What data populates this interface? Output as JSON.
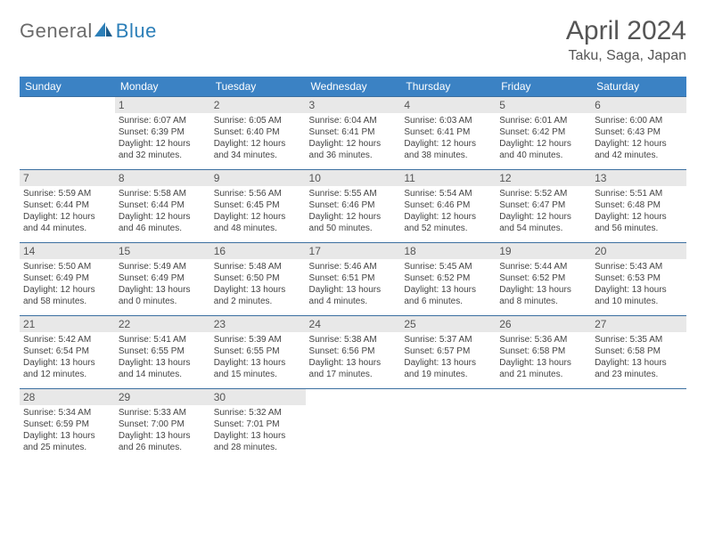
{
  "brand": {
    "general": "General",
    "blue": "Blue"
  },
  "title": "April 2024",
  "location": "Taku, Saga, Japan",
  "columns": [
    "Sunday",
    "Monday",
    "Tuesday",
    "Wednesday",
    "Thursday",
    "Friday",
    "Saturday"
  ],
  "colors": {
    "header_bg": "#3b82c4",
    "header_text": "#ffffff",
    "row_border": "#3b6fa0",
    "daynum_bg": "#e8e8e8",
    "text": "#444444",
    "brand_blue": "#2c7fb8",
    "brand_grey": "#6b6b6b"
  },
  "weeks": [
    [
      null,
      {
        "n": "1",
        "sunrise": "Sunrise: 6:07 AM",
        "sunset": "Sunset: 6:39 PM",
        "day1": "Daylight: 12 hours",
        "day2": "and 32 minutes."
      },
      {
        "n": "2",
        "sunrise": "Sunrise: 6:05 AM",
        "sunset": "Sunset: 6:40 PM",
        "day1": "Daylight: 12 hours",
        "day2": "and 34 minutes."
      },
      {
        "n": "3",
        "sunrise": "Sunrise: 6:04 AM",
        "sunset": "Sunset: 6:41 PM",
        "day1": "Daylight: 12 hours",
        "day2": "and 36 minutes."
      },
      {
        "n": "4",
        "sunrise": "Sunrise: 6:03 AM",
        "sunset": "Sunset: 6:41 PM",
        "day1": "Daylight: 12 hours",
        "day2": "and 38 minutes."
      },
      {
        "n": "5",
        "sunrise": "Sunrise: 6:01 AM",
        "sunset": "Sunset: 6:42 PM",
        "day1": "Daylight: 12 hours",
        "day2": "and 40 minutes."
      },
      {
        "n": "6",
        "sunrise": "Sunrise: 6:00 AM",
        "sunset": "Sunset: 6:43 PM",
        "day1": "Daylight: 12 hours",
        "day2": "and 42 minutes."
      }
    ],
    [
      {
        "n": "7",
        "sunrise": "Sunrise: 5:59 AM",
        "sunset": "Sunset: 6:44 PM",
        "day1": "Daylight: 12 hours",
        "day2": "and 44 minutes."
      },
      {
        "n": "8",
        "sunrise": "Sunrise: 5:58 AM",
        "sunset": "Sunset: 6:44 PM",
        "day1": "Daylight: 12 hours",
        "day2": "and 46 minutes."
      },
      {
        "n": "9",
        "sunrise": "Sunrise: 5:56 AM",
        "sunset": "Sunset: 6:45 PM",
        "day1": "Daylight: 12 hours",
        "day2": "and 48 minutes."
      },
      {
        "n": "10",
        "sunrise": "Sunrise: 5:55 AM",
        "sunset": "Sunset: 6:46 PM",
        "day1": "Daylight: 12 hours",
        "day2": "and 50 minutes."
      },
      {
        "n": "11",
        "sunrise": "Sunrise: 5:54 AM",
        "sunset": "Sunset: 6:46 PM",
        "day1": "Daylight: 12 hours",
        "day2": "and 52 minutes."
      },
      {
        "n": "12",
        "sunrise": "Sunrise: 5:52 AM",
        "sunset": "Sunset: 6:47 PM",
        "day1": "Daylight: 12 hours",
        "day2": "and 54 minutes."
      },
      {
        "n": "13",
        "sunrise": "Sunrise: 5:51 AM",
        "sunset": "Sunset: 6:48 PM",
        "day1": "Daylight: 12 hours",
        "day2": "and 56 minutes."
      }
    ],
    [
      {
        "n": "14",
        "sunrise": "Sunrise: 5:50 AM",
        "sunset": "Sunset: 6:49 PM",
        "day1": "Daylight: 12 hours",
        "day2": "and 58 minutes."
      },
      {
        "n": "15",
        "sunrise": "Sunrise: 5:49 AM",
        "sunset": "Sunset: 6:49 PM",
        "day1": "Daylight: 13 hours",
        "day2": "and 0 minutes."
      },
      {
        "n": "16",
        "sunrise": "Sunrise: 5:48 AM",
        "sunset": "Sunset: 6:50 PM",
        "day1": "Daylight: 13 hours",
        "day2": "and 2 minutes."
      },
      {
        "n": "17",
        "sunrise": "Sunrise: 5:46 AM",
        "sunset": "Sunset: 6:51 PM",
        "day1": "Daylight: 13 hours",
        "day2": "and 4 minutes."
      },
      {
        "n": "18",
        "sunrise": "Sunrise: 5:45 AM",
        "sunset": "Sunset: 6:52 PM",
        "day1": "Daylight: 13 hours",
        "day2": "and 6 minutes."
      },
      {
        "n": "19",
        "sunrise": "Sunrise: 5:44 AM",
        "sunset": "Sunset: 6:52 PM",
        "day1": "Daylight: 13 hours",
        "day2": "and 8 minutes."
      },
      {
        "n": "20",
        "sunrise": "Sunrise: 5:43 AM",
        "sunset": "Sunset: 6:53 PM",
        "day1": "Daylight: 13 hours",
        "day2": "and 10 minutes."
      }
    ],
    [
      {
        "n": "21",
        "sunrise": "Sunrise: 5:42 AM",
        "sunset": "Sunset: 6:54 PM",
        "day1": "Daylight: 13 hours",
        "day2": "and 12 minutes."
      },
      {
        "n": "22",
        "sunrise": "Sunrise: 5:41 AM",
        "sunset": "Sunset: 6:55 PM",
        "day1": "Daylight: 13 hours",
        "day2": "and 14 minutes."
      },
      {
        "n": "23",
        "sunrise": "Sunrise: 5:39 AM",
        "sunset": "Sunset: 6:55 PM",
        "day1": "Daylight: 13 hours",
        "day2": "and 15 minutes."
      },
      {
        "n": "24",
        "sunrise": "Sunrise: 5:38 AM",
        "sunset": "Sunset: 6:56 PM",
        "day1": "Daylight: 13 hours",
        "day2": "and 17 minutes."
      },
      {
        "n": "25",
        "sunrise": "Sunrise: 5:37 AM",
        "sunset": "Sunset: 6:57 PM",
        "day1": "Daylight: 13 hours",
        "day2": "and 19 minutes."
      },
      {
        "n": "26",
        "sunrise": "Sunrise: 5:36 AM",
        "sunset": "Sunset: 6:58 PM",
        "day1": "Daylight: 13 hours",
        "day2": "and 21 minutes."
      },
      {
        "n": "27",
        "sunrise": "Sunrise: 5:35 AM",
        "sunset": "Sunset: 6:58 PM",
        "day1": "Daylight: 13 hours",
        "day2": "and 23 minutes."
      }
    ],
    [
      {
        "n": "28",
        "sunrise": "Sunrise: 5:34 AM",
        "sunset": "Sunset: 6:59 PM",
        "day1": "Daylight: 13 hours",
        "day2": "and 25 minutes."
      },
      {
        "n": "29",
        "sunrise": "Sunrise: 5:33 AM",
        "sunset": "Sunset: 7:00 PM",
        "day1": "Daylight: 13 hours",
        "day2": "and 26 minutes."
      },
      {
        "n": "30",
        "sunrise": "Sunrise: 5:32 AM",
        "sunset": "Sunset: 7:01 PM",
        "day1": "Daylight: 13 hours",
        "day2": "and 28 minutes."
      },
      null,
      null,
      null,
      null
    ]
  ]
}
